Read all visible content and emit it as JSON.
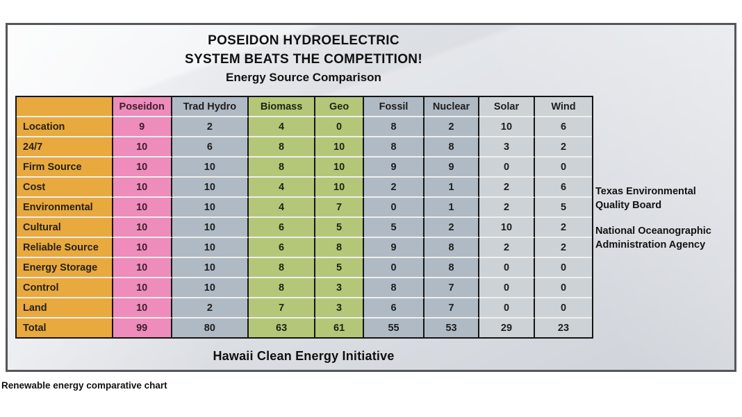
{
  "panel": {
    "title_line1": "POSEIDON HYDROELECTRIC",
    "title_line2": "SYSTEM BEATS THE COMPETITION!",
    "subtitle": "Energy Source Comparison",
    "footer": "Hawaii Clean Energy Initiative",
    "side_notes": [
      [
        "Texas Environmental",
        "Quality Board"
      ],
      [
        "National Oceanographic",
        "Administration Agency"
      ]
    ]
  },
  "caption": "Renewable energy comparative chart",
  "colors": {
    "orange": "#E8A93E",
    "pink": "#EE8CBB",
    "blue_gray": "#AFBAC5",
    "green": "#B4C778",
    "light_gray": "#CDD2D6",
    "border_dark": "#141414",
    "row_divider": "#EFEFED",
    "panel_border": "#55565A",
    "panel_bg_top": "#EFF1F4",
    "panel_bg_bottom": "#CFD3D9",
    "text_dark": "#1D1D1D"
  },
  "chart_data": {
    "type": "table",
    "title": "POSEIDON HYDROELECTRIC SYSTEM BEATS THE COMPETITION!",
    "subtitle": "Energy Source Comparison",
    "columns": [
      "",
      "Poseidon",
      "Trad Hydro",
      "Biomass",
      "Geo",
      "Fossil",
      "Nuclear",
      "Solar",
      "Wind"
    ],
    "column_styles": [
      "label",
      "pink",
      "blue-gray",
      "green",
      "green",
      "blue-gray",
      "blue-gray",
      "light-gray",
      "light-gray"
    ],
    "rows": [
      {
        "label": "Location",
        "values": [
          9,
          2,
          4,
          0,
          8,
          2,
          10,
          6
        ]
      },
      {
        "label": "24/7",
        "values": [
          10,
          6,
          8,
          10,
          8,
          8,
          3,
          2
        ]
      },
      {
        "label": "Firm Source",
        "values": [
          10,
          10,
          8,
          10,
          9,
          9,
          0,
          0
        ]
      },
      {
        "label": "Cost",
        "values": [
          10,
          10,
          4,
          10,
          2,
          1,
          2,
          6
        ]
      },
      {
        "label": "Environmental",
        "values": [
          10,
          10,
          4,
          7,
          0,
          1,
          2,
          5
        ]
      },
      {
        "label": "Cultural",
        "values": [
          10,
          10,
          6,
          5,
          5,
          2,
          10,
          2
        ]
      },
      {
        "label": "Reliable Source",
        "values": [
          10,
          10,
          6,
          8,
          9,
          8,
          2,
          2
        ]
      },
      {
        "label": "Energy Storage",
        "values": [
          10,
          10,
          8,
          5,
          0,
          8,
          0,
          0
        ]
      },
      {
        "label": "Control",
        "values": [
          10,
          10,
          8,
          3,
          8,
          7,
          0,
          0
        ]
      },
      {
        "label": "Land",
        "values": [
          10,
          2,
          7,
          3,
          6,
          7,
          0,
          0
        ]
      },
      {
        "label": "Total",
        "values": [
          99,
          80,
          63,
          61,
          55,
          53,
          29,
          23
        ]
      }
    ],
    "annotations": {
      "side": [
        "Texas Environmental Quality Board",
        "National Oceanographic Administration Agency"
      ],
      "footer": "Hawaii Clean Energy Initiative",
      "caption": "Renewable energy comparative chart"
    },
    "legend_position": "none",
    "grid": "table-borders"
  }
}
